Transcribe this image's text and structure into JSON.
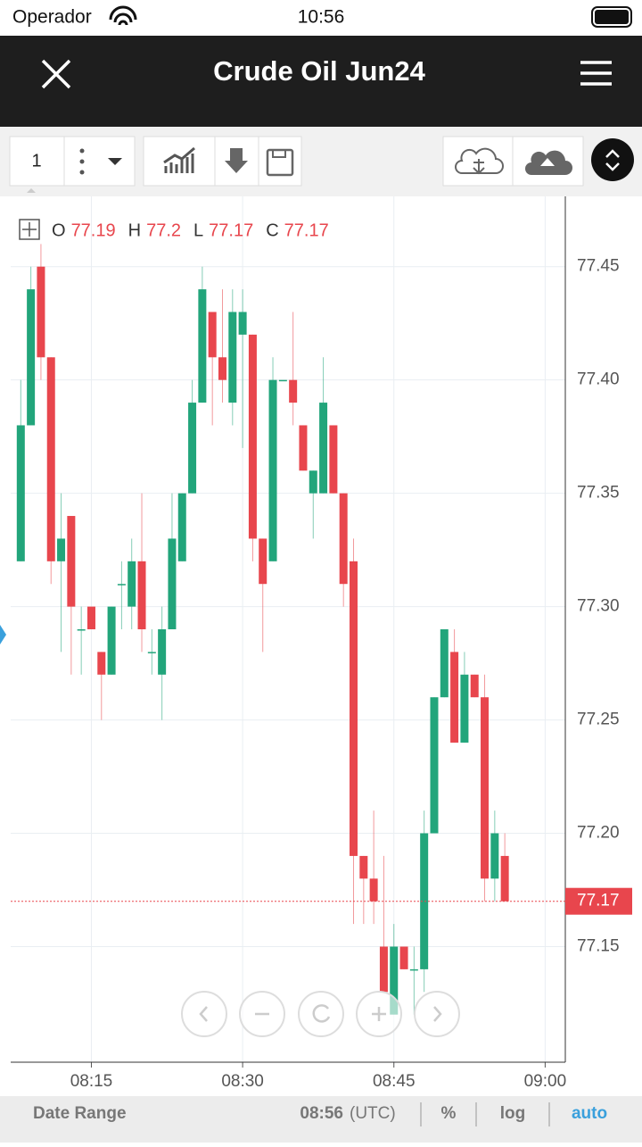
{
  "status_bar": {
    "carrier": "Operador",
    "time": "10:56"
  },
  "header": {
    "title": "Crude Oil Jun24"
  },
  "toolbar": {
    "interval": "1"
  },
  "footer": {
    "date_range": "Date Range",
    "time": "08:56",
    "timezone": "(UTC)",
    "percent": "%",
    "log": "log",
    "auto": "auto"
  },
  "chart_data": {
    "type": "candlestick",
    "ohlc_legend": [
      {
        "label": "O",
        "value": 77.19
      },
      {
        "label": "H",
        "value": 77.2
      },
      {
        "label": "L",
        "value": 77.17
      },
      {
        "label": "C",
        "value": 77.17
      }
    ],
    "last_price": 77.17,
    "up_color": "#22a57b",
    "down_color": "#e8464d",
    "grid": true,
    "x": [
      "08:08",
      "08:09",
      "08:10",
      "08:11",
      "08:12",
      "08:13",
      "08:14",
      "08:15",
      "08:16",
      "08:17",
      "08:18",
      "08:19",
      "08:20",
      "08:21",
      "08:22",
      "08:23",
      "08:24",
      "08:25",
      "08:26",
      "08:27",
      "08:28",
      "08:29",
      "08:30",
      "08:31",
      "08:32",
      "08:33",
      "08:34",
      "08:35",
      "08:36",
      "08:37",
      "08:38",
      "08:39",
      "08:40",
      "08:41",
      "08:42",
      "08:43",
      "08:44",
      "08:45",
      "08:46",
      "08:47",
      "08:48",
      "08:49",
      "08:50",
      "08:51",
      "08:52",
      "08:53",
      "08:54",
      "08:55",
      "08:56"
    ],
    "open": [
      77.32,
      77.38,
      77.45,
      77.41,
      77.32,
      77.34,
      77.29,
      77.3,
      77.28,
      77.27,
      77.31,
      77.3,
      77.32,
      77.28,
      77.27,
      77.29,
      77.32,
      77.35,
      77.39,
      77.43,
      77.41,
      77.39,
      77.42,
      77.42,
      77.33,
      77.32,
      77.4,
      77.4,
      77.38,
      77.35,
      77.35,
      77.38,
      77.35,
      77.32,
      77.19,
      77.18,
      77.15,
      77.12,
      77.15,
      77.14,
      77.14,
      77.2,
      77.26,
      77.28,
      77.24,
      77.27,
      77.26,
      77.18,
      77.19
    ],
    "high": [
      77.4,
      77.45,
      77.46,
      77.41,
      77.35,
      77.34,
      77.3,
      77.3,
      77.28,
      77.3,
      77.32,
      77.33,
      77.35,
      77.29,
      77.3,
      77.35,
      77.35,
      77.4,
      77.45,
      77.43,
      77.44,
      77.44,
      77.44,
      77.42,
      77.33,
      77.41,
      77.4,
      77.43,
      77.38,
      77.36,
      77.41,
      77.38,
      77.35,
      77.33,
      77.19,
      77.21,
      77.19,
      77.16,
      77.15,
      77.15,
      77.21,
      77.26,
      77.29,
      77.29,
      77.28,
      77.27,
      77.27,
      77.21,
      77.2
    ],
    "low": [
      77.32,
      77.38,
      77.4,
      77.31,
      77.28,
      77.27,
      77.27,
      77.29,
      77.25,
      77.27,
      77.29,
      77.29,
      77.28,
      77.27,
      77.25,
      77.29,
      77.32,
      77.35,
      77.39,
      77.38,
      77.39,
      77.38,
      77.37,
      77.32,
      77.28,
      77.32,
      77.4,
      77.38,
      77.36,
      77.33,
      77.35,
      77.35,
      77.3,
      77.16,
      77.16,
      77.16,
      77.13,
      77.12,
      77.14,
      77.12,
      77.13,
      77.2,
      77.26,
      77.24,
      77.24,
      77.26,
      77.17,
      77.17,
      77.17
    ],
    "close": [
      77.38,
      77.44,
      77.41,
      77.32,
      77.33,
      77.3,
      77.29,
      77.29,
      77.27,
      77.3,
      77.31,
      77.32,
      77.29,
      77.28,
      77.29,
      77.33,
      77.35,
      77.39,
      77.44,
      77.41,
      77.4,
      77.43,
      77.43,
      77.33,
      77.31,
      77.4,
      77.4,
      77.39,
      77.36,
      77.36,
      77.39,
      77.35,
      77.31,
      77.19,
      77.18,
      77.17,
      77.13,
      77.15,
      77.14,
      77.14,
      77.2,
      77.26,
      77.29,
      77.24,
      77.27,
      77.26,
      77.18,
      77.2,
      77.17
    ],
    "xlim": [
      "08:07",
      "09:02"
    ],
    "xticks": [
      "08:15",
      "08:30",
      "08:45",
      "09:00"
    ],
    "ylim": [
      77.099,
      77.481
    ],
    "yticks": [
      {
        "value": 77.15,
        "label": "77.15"
      },
      {
        "value": 77.2,
        "label": "77.20"
      },
      {
        "value": 77.25,
        "label": "77.25"
      },
      {
        "value": 77.3,
        "label": "77.30"
      },
      {
        "value": 77.35,
        "label": "77.35"
      },
      {
        "value": 77.4,
        "label": "77.40"
      },
      {
        "value": 77.45,
        "label": "77.45"
      }
    ]
  }
}
